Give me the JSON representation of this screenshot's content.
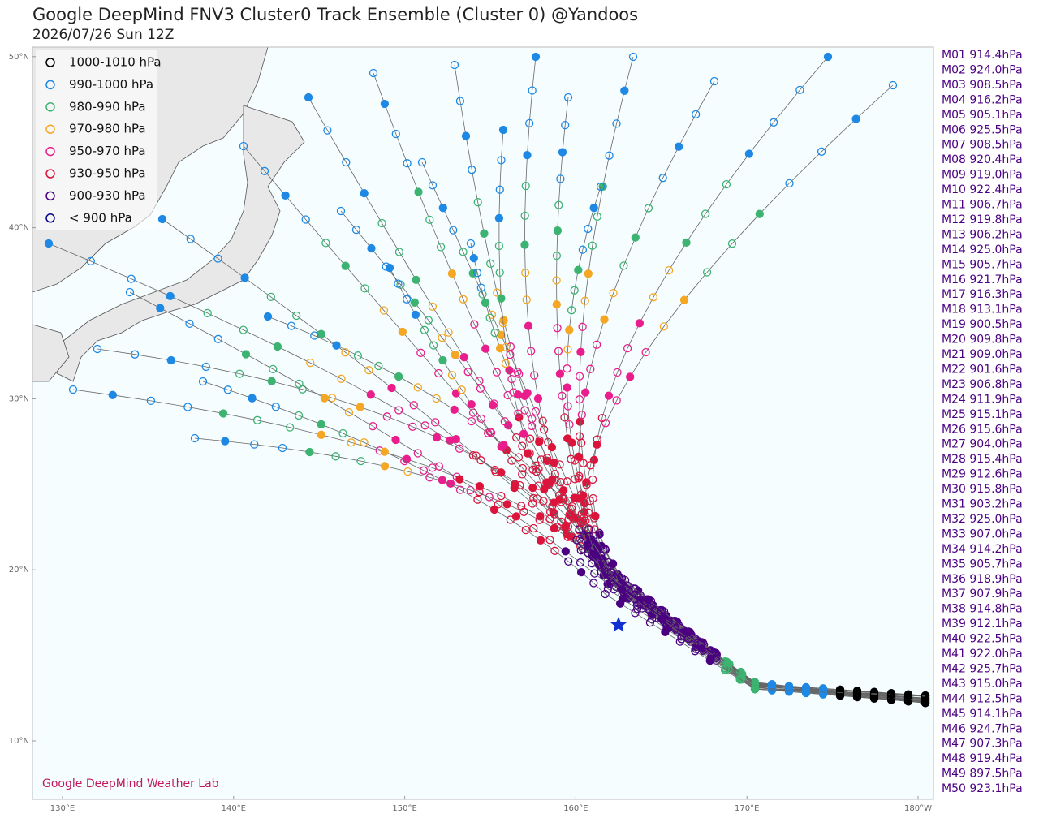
{
  "title": "Google DeepMind FNV3 Cluster0 Track Ensemble (Cluster 0) @Yandoos",
  "subtitle": "2026/07/26 Sun 12Z",
  "legend": [
    {
      "label": "1000-1010 hPa",
      "color": "#000000"
    },
    {
      "label": "990-1000 hPa",
      "color": "#1e88e5"
    },
    {
      "label": "980-990 hPa",
      "color": "#3cb371"
    },
    {
      "label": "970-980 hPa",
      "color": "#f5a623"
    },
    {
      "label": "950-970 hPa",
      "color": "#e91e8c"
    },
    {
      "label": "930-950 hPa",
      "color": "#dc143c"
    },
    {
      "label": "900-930 hPa",
      "color": "#4b0082"
    },
    {
      "label": "< 900 hPa",
      "color": "#00008b"
    }
  ],
  "members": [
    "M01 914.4hPa",
    "M02 924.0hPa",
    "M03 908.5hPa",
    "M04 916.2hPa",
    "M05 905.1hPa",
    "M06 925.5hPa",
    "M07 908.5hPa",
    "M08 920.4hPa",
    "M09 919.0hPa",
    "M10 922.4hPa",
    "M11 906.7hPa",
    "M12 919.8hPa",
    "M13 906.2hPa",
    "M14 925.0hPa",
    "M15 905.7hPa",
    "M16 921.7hPa",
    "M17 916.3hPa",
    "M18 913.1hPa",
    "M19 900.5hPa",
    "M20 909.8hPa",
    "M21 909.0hPa",
    "M22 901.6hPa",
    "M23 906.8hPa",
    "M24 911.9hPa",
    "M25 915.1hPa",
    "M26 915.6hPa",
    "M27 904.0hPa",
    "M28 915.4hPa",
    "M29 912.6hPa",
    "M30 915.8hPa",
    "M31 903.2hPa",
    "M32 925.0hPa",
    "M33 907.0hPa",
    "M34 914.2hPa",
    "M35 905.7hPa",
    "M36 918.9hPa",
    "M37 907.9hPa",
    "M38 914.8hPa",
    "M39 912.1hPa",
    "M40 922.5hPa",
    "M41 922.0hPa",
    "M42 925.7hPa",
    "M43 915.0hPa",
    "M44 912.5hPa",
    "M45 914.1hPa",
    "M46 924.7hPa",
    "M47 907.3hPa",
    "M48 919.4hPa",
    "M49 897.5hPa",
    "M50 923.1hPa"
  ],
  "lat_ticks": [
    {
      "value": 10,
      "label": "10°N"
    },
    {
      "value": 20,
      "label": "20°N"
    },
    {
      "value": 30,
      "label": "30°N"
    },
    {
      "value": 40,
      "label": "40°N"
    },
    {
      "value": 50,
      "label": "50°N"
    }
  ],
  "lon_ticks": [
    {
      "value": 130,
      "label": "130°E"
    },
    {
      "value": 140,
      "label": "140°E"
    },
    {
      "value": 150,
      "label": "150°E"
    },
    {
      "value": 160,
      "label": "160°E"
    },
    {
      "value": 170,
      "label": "170°E"
    },
    {
      "value": 180,
      "label": "180°W"
    }
  ],
  "credit": "Google DeepMind Weather Lab"
}
